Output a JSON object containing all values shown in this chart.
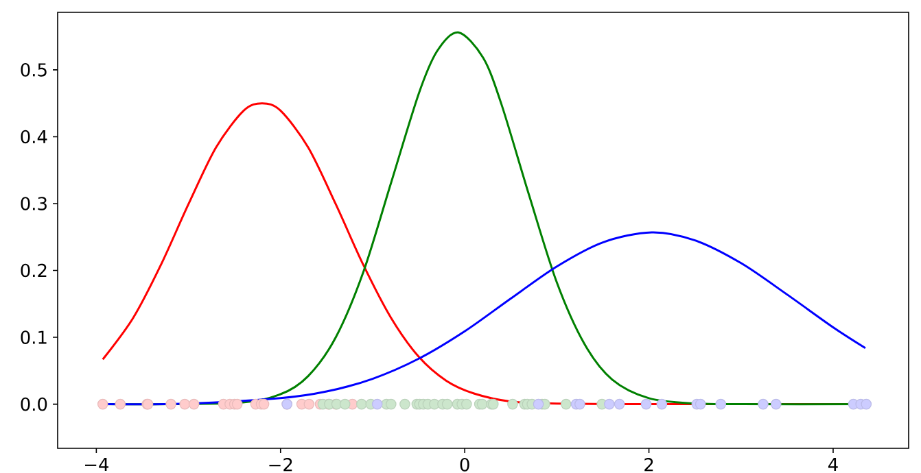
{
  "chart_data": {
    "type": "line",
    "xlim": [
      -4.42,
      4.82
    ],
    "ylim": [
      -0.066,
      0.586
    ],
    "xticks": [
      {
        "value": -4,
        "label": "−4"
      },
      {
        "value": -2,
        "label": "−2"
      },
      0,
      2,
      4
    ],
    "yticks": [
      {
        "value": 0,
        "label": "0.0"
      },
      0.1,
      0.2,
      0.3,
      0.4,
      0.5
    ],
    "grid": false,
    "series": [
      {
        "type": "scatter",
        "color": "#ffcccc",
        "x": [
          -3.93,
          -3.74,
          -3.45,
          -3.44,
          -3.19,
          -3.04,
          -2.94,
          -2.62,
          -2.55,
          -2.5,
          -2.47,
          -2.27,
          -2.21,
          -2.18,
          -1.93,
          -1.77,
          -1.69,
          -1.57,
          -1.48,
          -1.4,
          -1.22
        ],
        "values": [
          0,
          0,
          0,
          0,
          0,
          0,
          0,
          0,
          0,
          0,
          0,
          0,
          0,
          0,
          0,
          0,
          0,
          0,
          0,
          0,
          0
        ]
      },
      {
        "type": "scatter",
        "color": "#cce6cc",
        "x": [
          -1.54,
          -1.47,
          -1.39,
          -1.3,
          -1.12,
          -1.02,
          -0.85,
          -0.8,
          -0.65,
          -0.52,
          -0.49,
          -0.45,
          -0.4,
          -0.33,
          -0.24,
          -0.19,
          -0.08,
          -0.03,
          0.02,
          0.16,
          0.19,
          0.29,
          0.31,
          0.52,
          0.65,
          0.68,
          0.73,
          0.84,
          0.87,
          1.1,
          1.49
        ],
        "values": [
          0,
          0,
          0,
          0,
          0,
          0,
          0,
          0,
          0,
          0,
          0,
          0,
          0,
          0,
          0,
          0,
          0,
          0,
          0,
          0,
          0,
          0,
          0,
          0,
          0,
          0,
          0,
          0,
          0,
          0,
          0
        ]
      },
      {
        "type": "scatter",
        "color": "#ccccff",
        "x": [
          -1.93,
          -0.95,
          0.8,
          1.21,
          1.25,
          1.57,
          1.68,
          1.97,
          2.14,
          2.52,
          2.56,
          2.78,
          3.24,
          3.38,
          4.22,
          4.3,
          4.36
        ],
        "values": [
          0,
          0,
          0,
          0,
          0,
          0,
          0,
          0,
          0,
          0,
          0,
          0,
          0,
          0,
          0,
          0,
          0
        ]
      },
      {
        "color": "#ff0000",
        "x": [
          -3.93,
          -3.6,
          -3.3,
          -3.0,
          -2.7,
          -2.4,
          -2.2,
          -2.0,
          -1.7,
          -1.4,
          -1.1,
          -0.8,
          -0.5,
          -0.2,
          0.1,
          0.5,
          1.0,
          2.0,
          3.0,
          4.35
        ],
        "values": [
          0.067,
          0.129,
          0.208,
          0.299,
          0.384,
          0.439,
          0.45,
          0.439,
          0.384,
          0.299,
          0.208,
          0.129,
          0.071,
          0.035,
          0.016,
          0.004,
          0.001,
          0,
          0,
          0
        ]
      },
      {
        "color": "#008000",
        "x": [
          -3.93,
          -2.5,
          -2.0,
          -1.7,
          -1.4,
          -1.1,
          -0.8,
          -0.5,
          -0.3,
          -0.07,
          0.2,
          0.4,
          0.7,
          1.0,
          1.3,
          1.6,
          2.0,
          2.5,
          3.0,
          4.35
        ],
        "values": [
          0,
          0.002,
          0.015,
          0.042,
          0.1,
          0.198,
          0.331,
          0.464,
          0.528,
          0.556,
          0.518,
          0.448,
          0.312,
          0.182,
          0.09,
          0.037,
          0.009,
          0.001,
          0,
          0
        ]
      },
      {
        "color": "#0000ff",
        "x": [
          -3.93,
          -3.0,
          -2.0,
          -1.5,
          -1.0,
          -0.5,
          0.0,
          0.5,
          1.0,
          1.5,
          2.03,
          2.5,
          3.0,
          3.5,
          4.0,
          4.35
        ],
        "values": [
          0,
          0.001,
          0.009,
          0.019,
          0.038,
          0.068,
          0.109,
          0.158,
          0.206,
          0.242,
          0.257,
          0.245,
          0.211,
          0.164,
          0.115,
          0.084
        ]
      }
    ]
  }
}
